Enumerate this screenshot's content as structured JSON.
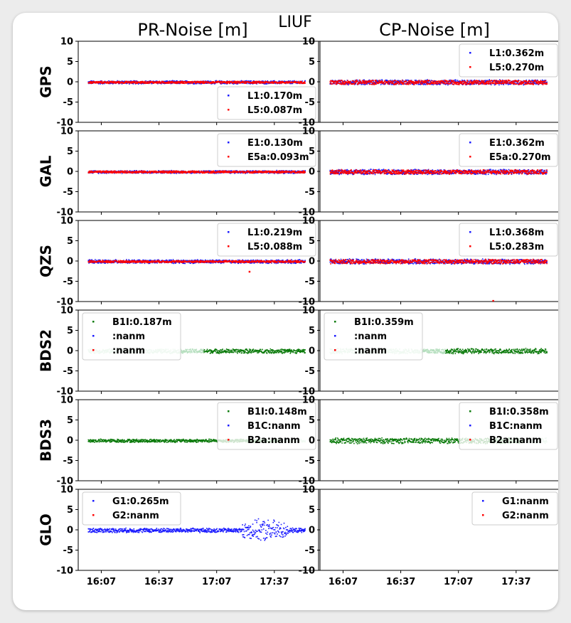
{
  "chart_data": {
    "type": "scatter",
    "title": "LIUF",
    "column_titles": [
      "PR-Noise [m]",
      "CP-Noise [m]"
    ],
    "row_labels": [
      "GPS",
      "GAL",
      "QZS",
      "BDS2",
      "BDS3",
      "GLO"
    ],
    "ylim": [
      -10,
      10
    ],
    "yticks": [
      10,
      5,
      0,
      -5,
      -10
    ],
    "x_ticks": [
      "16:07",
      "16:37",
      "17:07",
      "17:37"
    ],
    "x_range_time": [
      "15:55",
      "18:00"
    ],
    "colors": {
      "L1": "#1a1aff",
      "L5": "#ff0000",
      "B1I": "#0a7a0a",
      "B1I_faded": "#b6dfbf"
    },
    "panels": [
      {
        "row": "GPS",
        "col": "PR-Noise [m]",
        "legend": [
          {
            "label": "L1:0.170m",
            "color": "#1a1aff"
          },
          {
            "label": "L5:0.087m",
            "color": "#ff0000"
          }
        ],
        "legend_loc": "lower-right",
        "series": [
          {
            "name": "L1",
            "std": 0.17,
            "band": 0.45,
            "color": "#1a1aff"
          },
          {
            "name": "L5",
            "std": 0.087,
            "band": 0.3,
            "color": "#ff0000"
          }
        ]
      },
      {
        "row": "GPS",
        "col": "CP-Noise [m]",
        "legend": [
          {
            "label": "L1:0.362m",
            "color": "#1a1aff"
          },
          {
            "label": "L5:0.270m",
            "color": "#ff0000"
          }
        ],
        "legend_loc": "upper-right",
        "series": [
          {
            "name": "L1",
            "std": 0.362,
            "band": 0.7,
            "color": "#1a1aff"
          },
          {
            "name": "L5",
            "std": 0.27,
            "band": 0.6,
            "color": "#ff0000"
          }
        ]
      },
      {
        "row": "GAL",
        "col": "PR-Noise [m]",
        "legend": [
          {
            "label": "E1:0.130m",
            "color": "#1a1aff"
          },
          {
            "label": "E5a:0.093m",
            "color": "#ff0000"
          }
        ],
        "legend_loc": "upper-right",
        "series": [
          {
            "name": "E1",
            "std": 0.13,
            "band": 0.4,
            "color": "#1a1aff"
          },
          {
            "name": "E5a",
            "std": 0.093,
            "band": 0.3,
            "color": "#ff0000"
          }
        ]
      },
      {
        "row": "GAL",
        "col": "CP-Noise [m]",
        "legend": [
          {
            "label": "E1:0.362m",
            "color": "#1a1aff"
          },
          {
            "label": "E5a:0.270m",
            "color": "#ff0000"
          }
        ],
        "legend_loc": "upper-right",
        "series": [
          {
            "name": "E1",
            "std": 0.362,
            "band": 0.7,
            "color": "#1a1aff"
          },
          {
            "name": "E5a",
            "std": 0.27,
            "band": 0.6,
            "color": "#ff0000"
          }
        ]
      },
      {
        "row": "QZS",
        "col": "PR-Noise [m]",
        "legend": [
          {
            "label": "L1:0.219m",
            "color": "#1a1aff"
          },
          {
            "label": "L5:0.088m",
            "color": "#ff0000"
          }
        ],
        "legend_loc": "upper-right",
        "outliers": [
          {
            "time": "17:24",
            "y": -2.6,
            "color": "#ff0000"
          }
        ],
        "series": [
          {
            "name": "L1",
            "std": 0.219,
            "band": 0.5,
            "color": "#1a1aff"
          },
          {
            "name": "L5",
            "std": 0.088,
            "band": 0.3,
            "color": "#ff0000"
          }
        ]
      },
      {
        "row": "QZS",
        "col": "CP-Noise [m]",
        "legend": [
          {
            "label": "L1:0.368m",
            "color": "#1a1aff"
          },
          {
            "label": "L5:0.283m",
            "color": "#ff0000"
          }
        ],
        "legend_loc": "upper-right",
        "outliers": [
          {
            "time": "17:25",
            "y": -9.8,
            "color": "#ff0000"
          }
        ],
        "series": [
          {
            "name": "L1",
            "std": 0.368,
            "band": 0.7,
            "color": "#1a1aff"
          },
          {
            "name": "L5",
            "std": 0.283,
            "band": 0.6,
            "color": "#ff0000"
          }
        ]
      },
      {
        "row": "BDS2",
        "col": "PR-Noise [m]",
        "legend": [
          {
            "label": "B1I:0.187m",
            "color": "#0a7a0a"
          },
          {
            "label": ":nanm",
            "color": "#1a1aff"
          },
          {
            "label": ":nanm",
            "color": "#ff0000"
          }
        ],
        "legend_loc": "upper-left",
        "series": [
          {
            "name": "B1I",
            "std": 0.187,
            "band": 0.6,
            "color": "#0a7a0a"
          }
        ]
      },
      {
        "row": "BDS2",
        "col": "CP-Noise [m]",
        "legend": [
          {
            "label": "B1I:0.359m",
            "color": "#0a7a0a"
          },
          {
            "label": ":nanm",
            "color": "#1a1aff"
          },
          {
            "label": ":nanm",
            "color": "#ff0000"
          }
        ],
        "legend_loc": "upper-left",
        "series": [
          {
            "name": "B1I",
            "std": 0.359,
            "band": 0.7,
            "color": "#0a7a0a"
          }
        ]
      },
      {
        "row": "BDS3",
        "col": "PR-Noise [m]",
        "legend": [
          {
            "label": "B1I:0.148m",
            "color": "#0a7a0a"
          },
          {
            "label": "B1C:nanm",
            "color": "#1a1aff"
          },
          {
            "label": "B2a:nanm",
            "color": "#ff0000"
          }
        ],
        "legend_loc": "upper-right",
        "series": [
          {
            "name": "B1I",
            "std": 0.148,
            "band": 0.45,
            "color": "#0a7a0a"
          }
        ]
      },
      {
        "row": "BDS3",
        "col": "CP-Noise [m]",
        "legend": [
          {
            "label": "B1I:0.358m",
            "color": "#0a7a0a"
          },
          {
            "label": "B1C:nanm",
            "color": "#1a1aff"
          },
          {
            "label": "B2a:nanm",
            "color": "#ff0000"
          }
        ],
        "legend_loc": "upper-right",
        "series": [
          {
            "name": "B1I",
            "std": 0.358,
            "band": 0.75,
            "color": "#0a7a0a"
          }
        ]
      },
      {
        "row": "GLO",
        "col": "PR-Noise [m]",
        "legend": [
          {
            "label": "G1:0.265m",
            "color": "#1a1aff"
          },
          {
            "label": "G2:nanm",
            "color": "#ff0000"
          }
        ],
        "legend_loc": "upper-left",
        "series": [
          {
            "name": "G1",
            "std": 0.265,
            "band": 0.6,
            "color": "#1a1aff",
            "burst": {
              "from": "17:20",
              "to": "17:44",
              "band": 2.4
            }
          }
        ]
      },
      {
        "row": "GLO",
        "col": "CP-Noise [m]",
        "legend": [
          {
            "label": "G1:nanm",
            "color": "#1a1aff"
          },
          {
            "label": "G2:nanm",
            "color": "#ff0000"
          }
        ],
        "legend_loc": "upper-right",
        "series": []
      }
    ]
  }
}
